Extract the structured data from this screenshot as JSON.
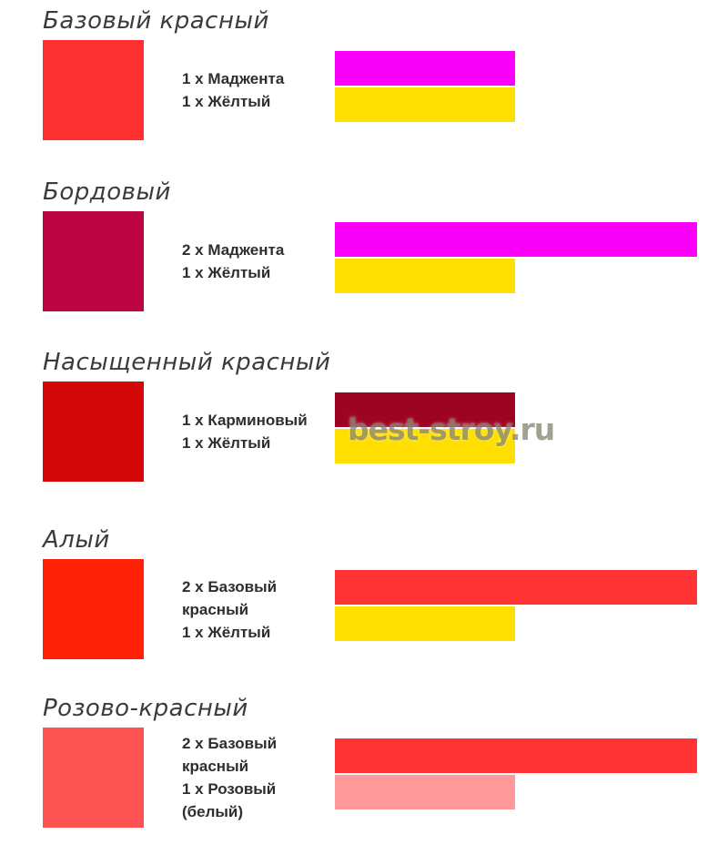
{
  "page": {
    "background": "#FFFFFF",
    "watermark": "best-stroy.ru"
  },
  "palette": {
    "magenta": "#FA00FA",
    "yellow": "#FFDE00",
    "carmine": "#9D0322",
    "base_red": "#FF3434",
    "pink": "#FF9898",
    "title_text": "#3B3B3B",
    "recipe_text": "#2E2E2E"
  },
  "sections": [
    {
      "title": "Базовый красный",
      "swatch_color": "#FE3030",
      "recipe": [
        "1 x Маджента",
        "1 x Жёлтый"
      ],
      "bars": [
        {
          "ingredient": "Маджента",
          "parts": 1,
          "color": "#FA00FA"
        },
        {
          "ingredient": "Жёлтый",
          "parts": 1,
          "color": "#FFDE00"
        }
      ]
    },
    {
      "title": "Бордовый",
      "swatch_color": "#BD0444",
      "recipe": [
        "2 x Маджента",
        "1 x Жёлтый"
      ],
      "bars": [
        {
          "ingredient": "Маджента",
          "parts": 2,
          "color": "#FA00FA"
        },
        {
          "ingredient": "Жёлтый",
          "parts": 1,
          "color": "#FFDE00"
        }
      ]
    },
    {
      "title": "Насыщенный красный",
      "swatch_color": "#D30808",
      "recipe": [
        "1 x Карминовый",
        "1 x Жёлтый"
      ],
      "bars": [
        {
          "ingredient": "Карминовый",
          "parts": 1,
          "color": "#9D0322"
        },
        {
          "ingredient": "Жёлтый",
          "parts": 1,
          "color": "#FFDE00"
        }
      ]
    },
    {
      "title": "Алый",
      "swatch_color": "#FE2104",
      "recipe": [
        "2 x Базовый красный",
        "1 x Жёлтый"
      ],
      "bars": [
        {
          "ingredient": "Базовый красный",
          "parts": 2,
          "color": "#FF3434"
        },
        {
          "ingredient": "Жёлтый",
          "parts": 1,
          "color": "#FFDE00"
        }
      ]
    },
    {
      "title": "Розово-красный",
      "swatch_color": "#FC5252",
      "recipe": [
        "2 x Базовый красный",
        "1 x Розовый (белый)"
      ],
      "bars": [
        {
          "ingredient": "Базовый красный",
          "parts": 2,
          "color": "#FF3434"
        },
        {
          "ingredient": "Розовый",
          "parts": 1,
          "color": "#FF9898"
        }
      ]
    }
  ]
}
